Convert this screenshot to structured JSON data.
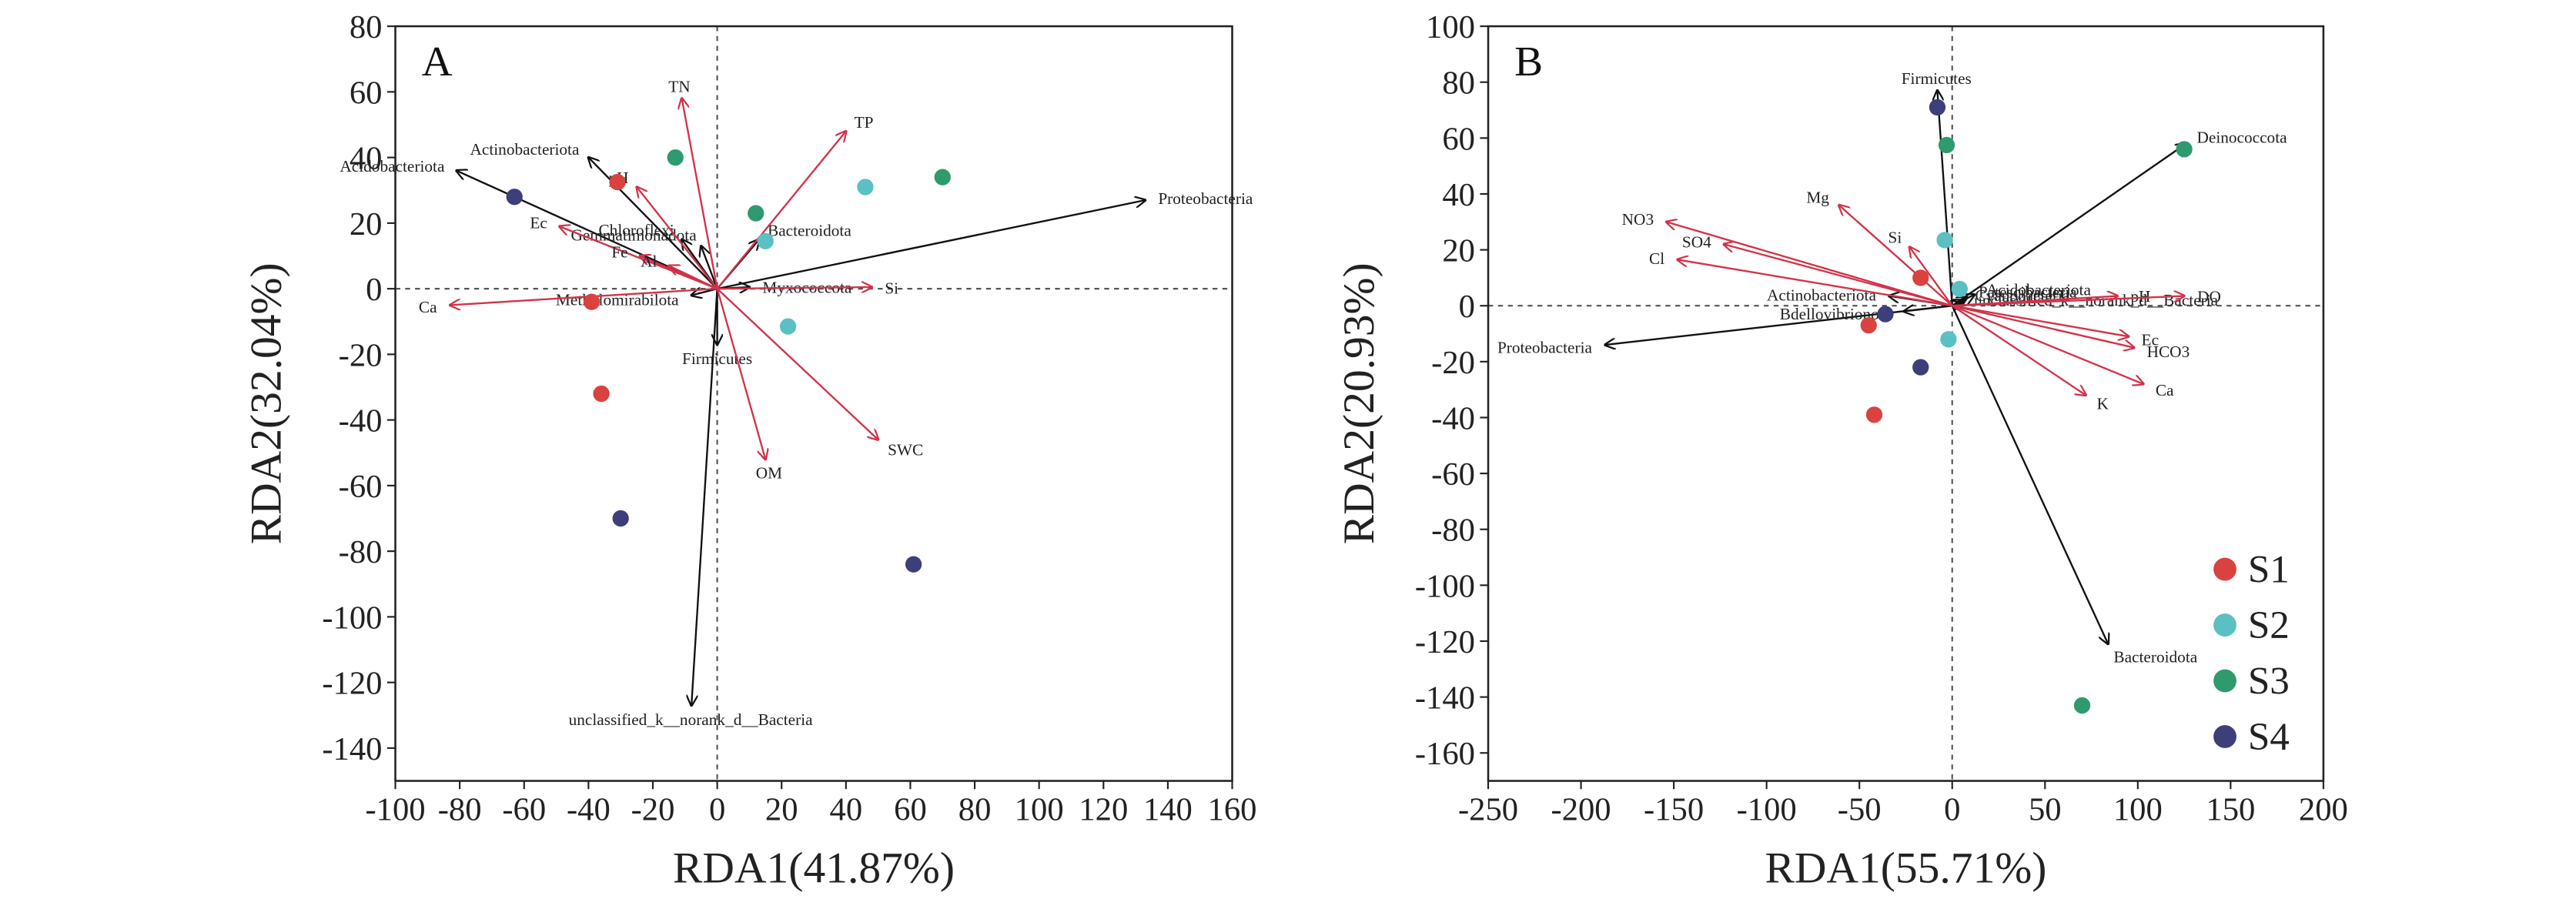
{
  "chart_data": [
    {
      "type": "biplot",
      "label": "A",
      "xlabel": "RDA1(41.87%)",
      "ylabel": "RDA2(32.04%)",
      "xlim": [
        -100,
        160
      ],
      "xticks": [
        -100,
        -80,
        -60,
        -40,
        -20,
        0,
        20,
        40,
        60,
        80,
        100,
        120,
        140,
        160
      ],
      "ylim": [
        -150,
        80
      ],
      "yticks": [
        -140,
        -120,
        -100,
        -80,
        -60,
        -40,
        -20,
        0,
        20,
        40,
        60,
        80
      ],
      "series": [
        {
          "color": "#d9423f",
          "x": [
            -31,
            -39,
            -36
          ],
          "y": [
            32.5,
            -4,
            -32
          ]
        },
        {
          "color": "#5bc0c4",
          "x": [
            46,
            15,
            22
          ],
          "y": [
            31,
            14.5,
            -11.5
          ]
        },
        {
          "color": "#2f9a6e",
          "x": [
            70,
            12,
            -13
          ],
          "y": [
            34,
            23,
            40
          ]
        },
        {
          "color": "#3c3f7a",
          "x": [
            -63,
            -30,
            61
          ],
          "y": [
            28,
            -70,
            -84
          ]
        }
      ],
      "arrows": [
        {
          "name": "Proteobacteria",
          "x": 133,
          "y": 27,
          "color": "#111111"
        },
        {
          "name": "Acidobacteriota",
          "x": -81,
          "y": 36,
          "color": "#111111"
        },
        {
          "name": "Actinobacteriota",
          "x": -40,
          "y": 40,
          "color": "#111111"
        },
        {
          "name": "Chloroflexi",
          "x": -11,
          "y": 15,
          "color": "#111111"
        },
        {
          "name": "Bacteroidota",
          "x": 13,
          "y": 15,
          "color": "#111111"
        },
        {
          "name": "Gemmatimonadota",
          "x": -5,
          "y": 13,
          "color": "#111111"
        },
        {
          "name": "Myxococcota",
          "x": 10,
          "y": 0.5,
          "color": "#111111"
        },
        {
          "name": "Methylomirabilota",
          "x": -8,
          "y": -2,
          "color": "#111111"
        },
        {
          "name": "Firmicutes",
          "x": 0,
          "y": -17,
          "color": "#111111"
        },
        {
          "name": "unclassified_k__norank_d__Bacteria",
          "x": -8,
          "y": -127,
          "color": "#111111"
        },
        {
          "name": "TN",
          "x": -11,
          "y": 58,
          "color": "#d2334a"
        },
        {
          "name": "TP",
          "x": 40,
          "y": 48,
          "color": "#d2334a"
        },
        {
          "name": "pH",
          "x": -25,
          "y": 31,
          "color": "#d2334a"
        },
        {
          "name": "Ec",
          "x": -49,
          "y": 19,
          "color": "#d2334a"
        },
        {
          "name": "Fe",
          "x": -24,
          "y": 10,
          "color": "#d2334a"
        },
        {
          "name": "Al",
          "x": -15,
          "y": 7,
          "color": "#d2334a"
        },
        {
          "name": "Ca",
          "x": -83,
          "y": -5,
          "color": "#d2334a"
        },
        {
          "name": "Si",
          "x": 48,
          "y": 0.5,
          "color": "#d2334a"
        },
        {
          "name": "SWC",
          "x": 50,
          "y": -46,
          "color": "#d2334a"
        },
        {
          "name": "OM",
          "x": 15,
          "y": -52,
          "color": "#d2334a"
        }
      ]
    },
    {
      "type": "biplot",
      "label": "B",
      "xlabel": "RDA1(55.71%)",
      "ylabel": "RDA2(20.93%)",
      "xlim": [
        -250,
        200
      ],
      "xticks": [
        -250,
        -200,
        -150,
        -100,
        -50,
        0,
        50,
        100,
        150,
        200
      ],
      "ylim": [
        -170,
        100
      ],
      "yticks": [
        -160,
        -140,
        -120,
        -100,
        -80,
        -60,
        -40,
        -20,
        0,
        20,
        40,
        60,
        80,
        100
      ],
      "legend": "lower right",
      "series": [
        {
          "name": "S1",
          "color": "#d9423f",
          "x": [
            -17,
            -45,
            -42
          ],
          "y": [
            10,
            -7,
            -39
          ]
        },
        {
          "name": "S2",
          "color": "#5bc0c4",
          "x": [
            -4,
            4,
            -2
          ],
          "y": [
            23.5,
            6,
            -12
          ]
        },
        {
          "name": "S3",
          "color": "#2f9a6e",
          "x": [
            -3,
            125,
            70
          ],
          "y": [
            57.5,
            56,
            -143
          ]
        },
        {
          "name": "S4",
          "color": "#3c3f7a",
          "x": [
            -8,
            -36,
            -17
          ],
          "y": [
            71,
            -3,
            -22
          ]
        }
      ],
      "arrows": [
        {
          "name": "Firmicutes",
          "x": -8,
          "y": 77,
          "color": "#111111"
        },
        {
          "name": "Deinococcota",
          "x": 126,
          "y": 58,
          "color": "#111111"
        },
        {
          "name": "Proteobacteria",
          "x": -187,
          "y": -14,
          "color": "#111111"
        },
        {
          "name": "Bacteroidota",
          "x": 84,
          "y": -121,
          "color": "#111111"
        },
        {
          "name": "Actinobacteriota",
          "x": -34,
          "y": 3.5,
          "color": "#111111"
        },
        {
          "name": "Bdellovibrionota",
          "x": -26,
          "y": -2,
          "color": "#111111"
        },
        {
          "name": "Acidobacteriota",
          "x": 12,
          "y": 4,
          "color": "#111111"
        },
        {
          "name": "Patescibacteria",
          "x": 8,
          "y": 3,
          "color": "#111111"
        },
        {
          "name": "Cyanobacteria",
          "x": 6,
          "y": 2,
          "color": "#111111"
        },
        {
          "name": "unclassified_k__norank_d__Bacteria",
          "x": 5,
          "y": 1,
          "color": "#111111"
        },
        {
          "name": "NO3",
          "x": -154,
          "y": 30,
          "color": "#d2334a"
        },
        {
          "name": "Cl",
          "x": -148,
          "y": 16.5,
          "color": "#d2334a"
        },
        {
          "name": "SO4",
          "x": -123,
          "y": 22,
          "color": "#d2334a"
        },
        {
          "name": "Mg",
          "x": -61,
          "y": 36,
          "color": "#d2334a"
        },
        {
          "name": "Si",
          "x": -23,
          "y": 21,
          "color": "#d2334a"
        },
        {
          "name": "pH",
          "x": 89,
          "y": 3.5,
          "color": "#d2334a"
        },
        {
          "name": "DO",
          "x": 125,
          "y": 3.5,
          "color": "#d2334a"
        },
        {
          "name": "Ec",
          "x": 95,
          "y": -11,
          "color": "#d2334a"
        },
        {
          "name": "HCO3",
          "x": 98,
          "y": -15,
          "color": "#d2334a"
        },
        {
          "name": "Ca",
          "x": 103,
          "y": -28,
          "color": "#d2334a"
        },
        {
          "name": "K",
          "x": 72,
          "y": -32,
          "color": "#d2334a"
        }
      ]
    }
  ]
}
